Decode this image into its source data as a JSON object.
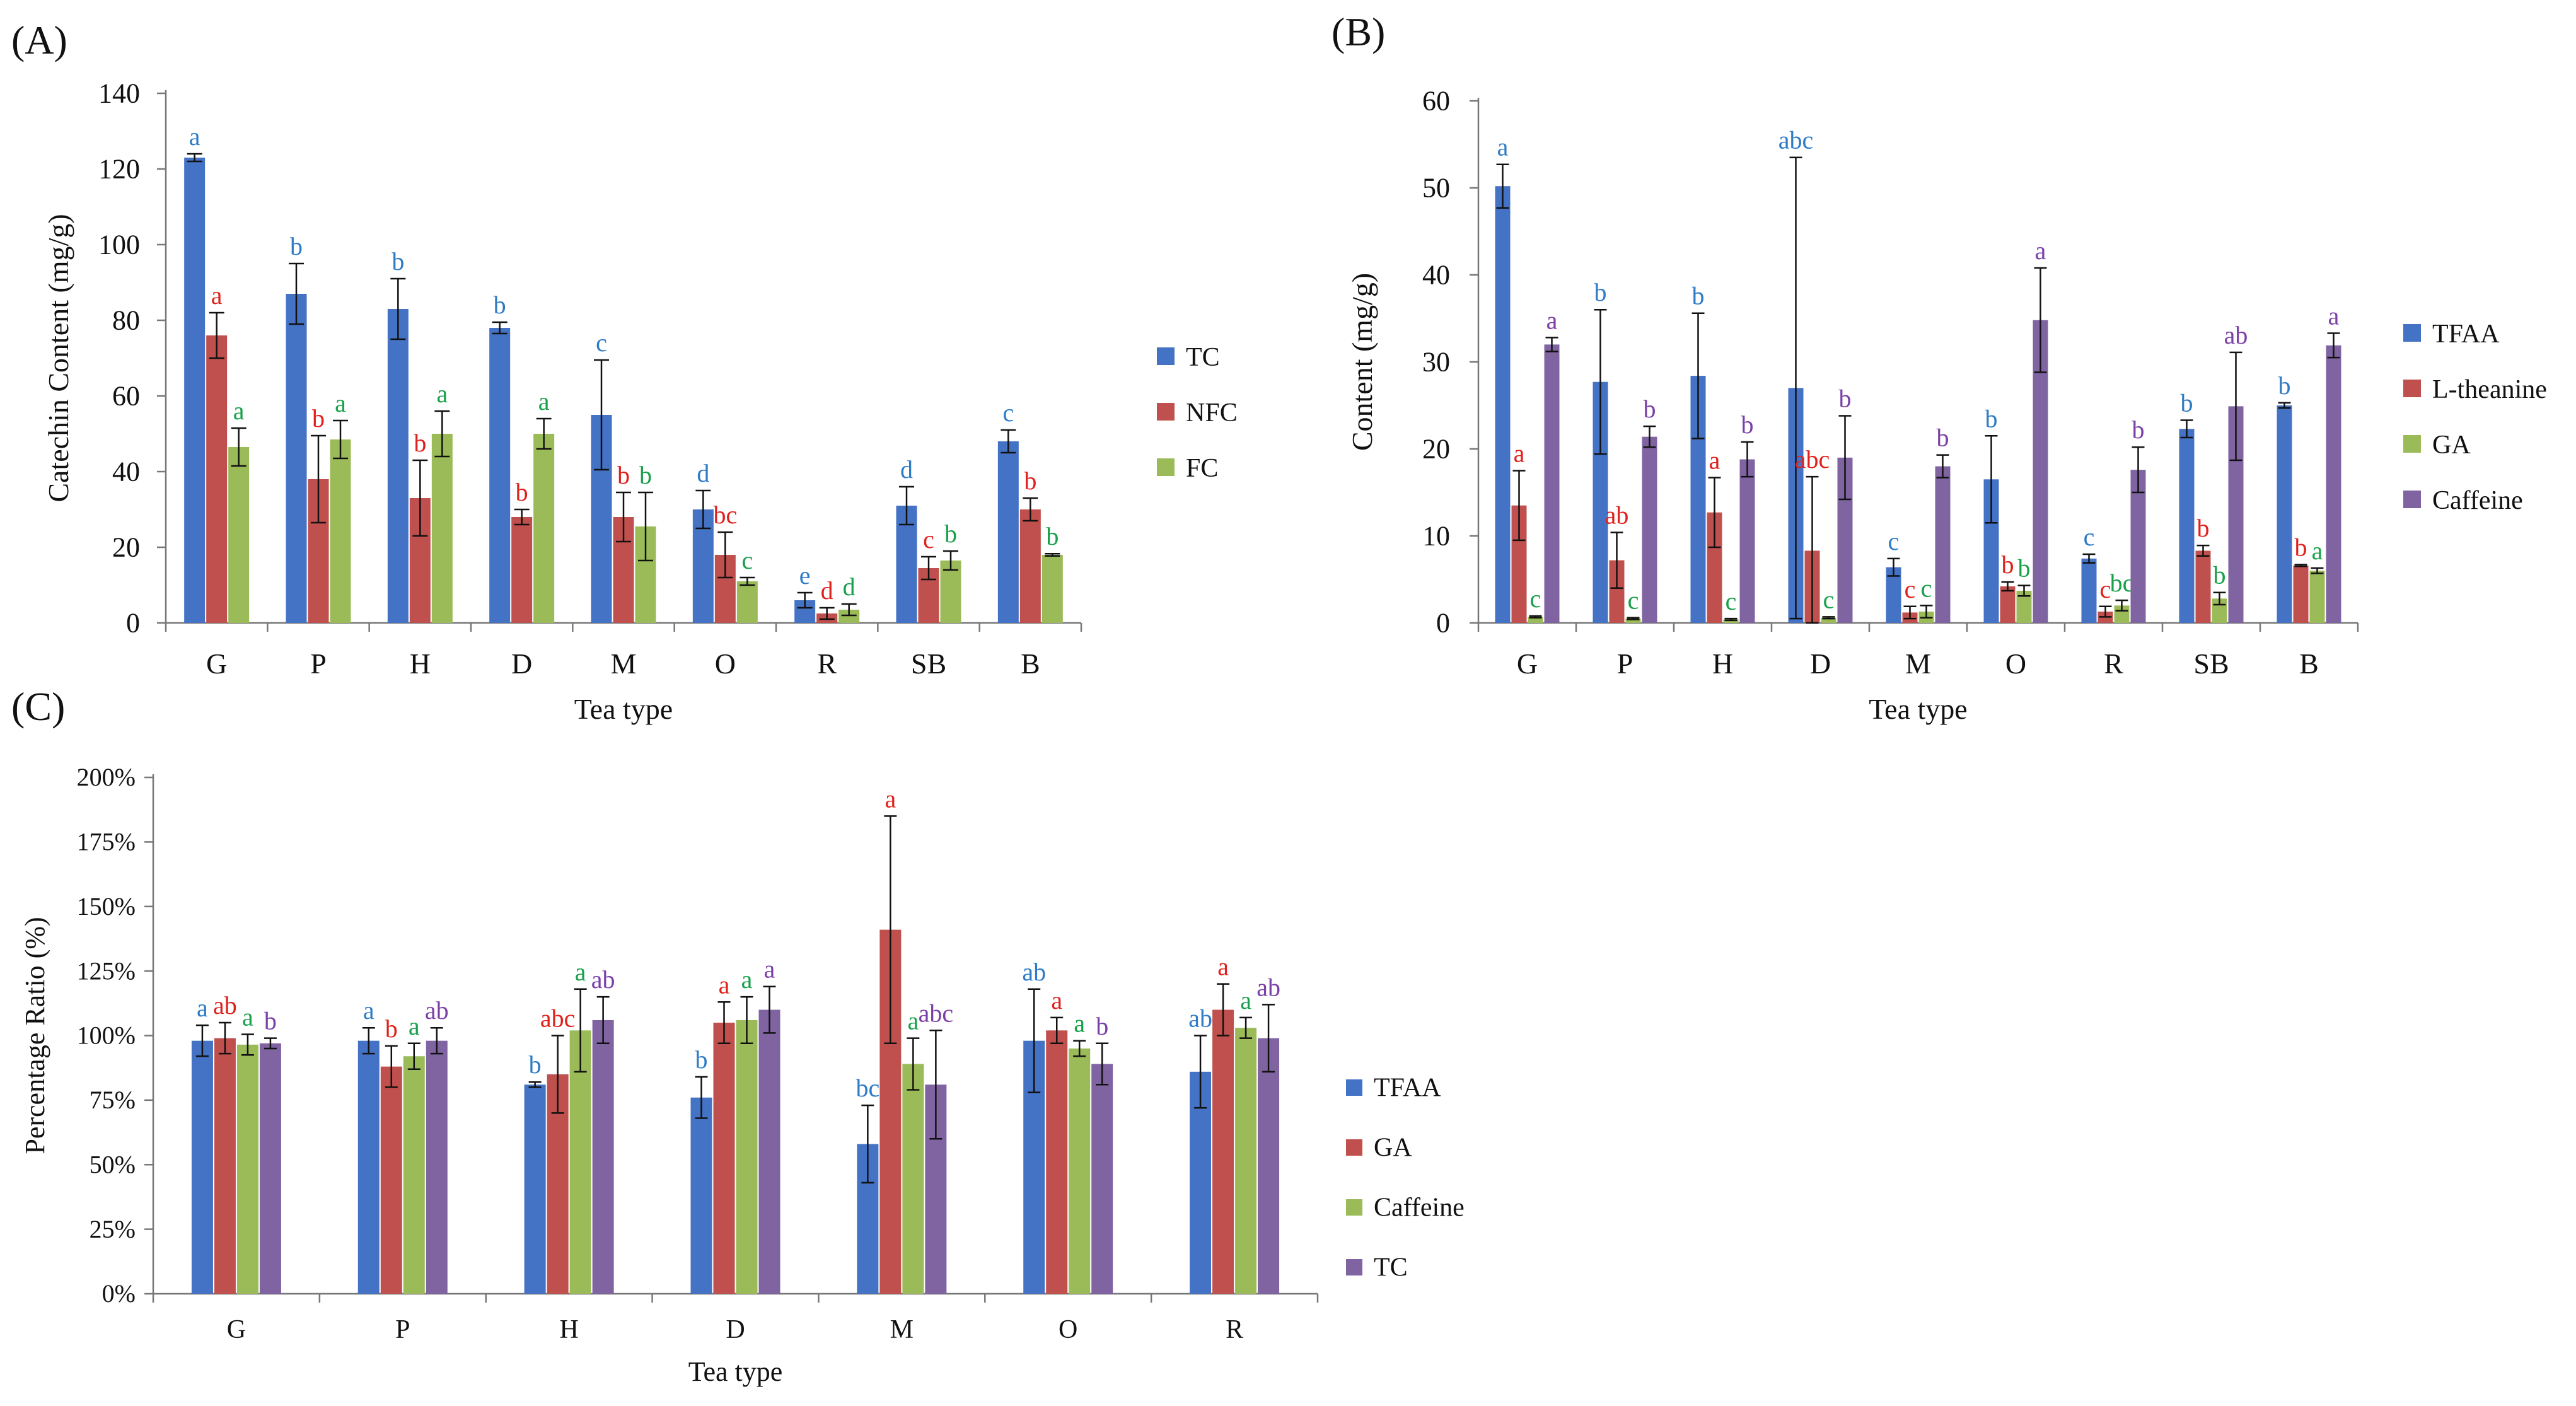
{
  "chart_data": [
    {
      "type": "bar",
      "panel": "(A)",
      "title": "",
      "xlabel": "Tea type",
      "ylabel": "Catechin Content (mg/g)",
      "ylim": [
        0,
        140
      ],
      "yticks": [
        0,
        20,
        40,
        60,
        80,
        100,
        120,
        140
      ],
      "ytick_labels": [
        "0",
        "20",
        "40",
        "60",
        "80",
        "100",
        "120",
        "140"
      ],
      "categories": [
        "G",
        "P",
        "H",
        "D",
        "M",
        "O",
        "R",
        "SB",
        "B"
      ],
      "legend_position": "right",
      "series": [
        {
          "name": "TC",
          "color": "#4472C4",
          "letter_color": "#2E7BC6",
          "values": [
            123,
            87,
            83,
            78,
            55,
            30,
            6,
            31,
            48
          ],
          "errors": [
            1,
            8,
            8,
            1.5,
            14.5,
            5,
            2,
            5,
            3
          ],
          "letters": [
            "a",
            "b",
            "b",
            "b",
            "c",
            "d",
            "e",
            "d",
            "c"
          ]
        },
        {
          "name": "NFC",
          "color": "#C0504D",
          "letter_color": "#E0201B",
          "values": [
            76,
            38,
            33,
            28,
            28,
            18,
            2.5,
            14.5,
            30
          ],
          "errors": [
            6,
            11.5,
            10,
            2,
            6.5,
            6,
            1.5,
            3,
            3
          ],
          "letters": [
            "a",
            "b",
            "b",
            "b",
            "b",
            "bc",
            "d",
            "c",
            "b"
          ]
        },
        {
          "name": "FC",
          "color": "#9BBB59",
          "letter_color": "#18A04A",
          "values": [
            46.5,
            48.5,
            50,
            50,
            25.5,
            11,
            3.5,
            16.5,
            18
          ],
          "errors": [
            5,
            5,
            6,
            4,
            9,
            1,
            1.5,
            2.5,
            0.3
          ],
          "letters": [
            "a",
            "a",
            "a",
            "a",
            "b",
            "c",
            "d",
            "b",
            "b"
          ]
        }
      ]
    },
    {
      "type": "bar",
      "panel": "(B)",
      "title": "",
      "xlabel": "Tea type",
      "ylabel": "Content (mg/g)",
      "ylim": [
        0,
        60
      ],
      "yticks": [
        0,
        10,
        20,
        30,
        40,
        50,
        60
      ],
      "ytick_labels": [
        "0",
        "10",
        "20",
        "30",
        "40",
        "50",
        "60"
      ],
      "categories": [
        "G",
        "P",
        "H",
        "D",
        "M",
        "O",
        "R",
        "SB",
        "B"
      ],
      "legend_position": "right",
      "series": [
        {
          "name": "TFAA",
          "color": "#4472C4",
          "letter_color": "#2E7BC6",
          "values": [
            50.2,
            27.7,
            28.4,
            27,
            6.4,
            16.5,
            7.4,
            22.3,
            25
          ],
          "errors": [
            2.5,
            8.3,
            7.2,
            26.5,
            1,
            5,
            0.5,
            1,
            0.3
          ],
          "letters": [
            "a",
            "b",
            "b",
            "abc",
            "c",
            "b",
            "c",
            "b",
            "b"
          ]
        },
        {
          "name": "L-theanine",
          "color": "#C0504D",
          "letter_color": "#E0201B",
          "values": [
            13.5,
            7.2,
            12.7,
            8.3,
            1.2,
            4.2,
            1.3,
            8.3,
            6.6
          ],
          "errors": [
            4,
            3.2,
            4,
            8.5,
            0.7,
            0.5,
            0.6,
            0.6,
            0.1
          ],
          "letters": [
            "a",
            "ab",
            "a",
            "abc",
            "c",
            "b",
            "c",
            "b",
            "b"
          ]
        },
        {
          "name": "GA",
          "color": "#9BBB59",
          "letter_color": "#18A04A",
          "values": [
            0.7,
            0.5,
            0.4,
            0.6,
            1.3,
            3.7,
            2,
            2.8,
            6
          ],
          "errors": [
            0.1,
            0.1,
            0.1,
            0.1,
            0.7,
            0.6,
            0.6,
            0.7,
            0.3
          ],
          "letters": [
            "c",
            "c",
            "c",
            "c",
            "c",
            "b",
            "bc",
            "b",
            "a"
          ]
        },
        {
          "name": "Caffeine",
          "color": "#8064A2",
          "letter_color": "#7B3FA8",
          "values": [
            32,
            21.4,
            18.8,
            19,
            18,
            34.8,
            17.6,
            24.9,
            31.9
          ],
          "errors": [
            0.8,
            1.2,
            2,
            4.8,
            1.3,
            6,
            2.6,
            6.2,
            1.4
          ],
          "letters": [
            "a",
            "b",
            "b",
            "b",
            "b",
            "a",
            "b",
            "ab",
            "a"
          ]
        }
      ]
    },
    {
      "type": "bar",
      "panel": "(C)",
      "title": "",
      "xlabel": "Tea type",
      "ylabel": "Percentage Ratio (%)",
      "ylim": [
        0,
        200
      ],
      "yticks": [
        0,
        25,
        50,
        75,
        100,
        125,
        150,
        175,
        200
      ],
      "ytick_labels": [
        "0%",
        "25%",
        "50%",
        "75%",
        "100%",
        "125%",
        "150%",
        "175%",
        "200%"
      ],
      "categories": [
        "G",
        "P",
        "H",
        "D",
        "M",
        "O",
        "R"
      ],
      "legend_position": "right",
      "series": [
        {
          "name": "TFAA",
          "color": "#4472C4",
          "letter_color": "#2E7BC6",
          "values": [
            98,
            98,
            81,
            76,
            58,
            98,
            86
          ],
          "errors": [
            6,
            5,
            1,
            8,
            15,
            20,
            14
          ],
          "letters": [
            "a",
            "a",
            "b",
            "b",
            "bc",
            "ab",
            "ab"
          ]
        },
        {
          "name": "GA",
          "color": "#C0504D",
          "letter_color": "#E0201B",
          "values": [
            99,
            88,
            85,
            105,
            141,
            102,
            110
          ],
          "errors": [
            6,
            8,
            15,
            8,
            44,
            5,
            10
          ],
          "letters": [
            "ab",
            "b",
            "abc",
            "a",
            "a",
            "a",
            "a"
          ]
        },
        {
          "name": "Caffeine",
          "color": "#9BBB59",
          "letter_color": "#18A04A",
          "values": [
            96.5,
            92,
            102,
            106,
            89,
            95,
            103
          ],
          "errors": [
            4,
            5,
            16,
            9,
            10,
            3,
            4
          ],
          "letters": [
            "a",
            "a",
            "a",
            "a",
            "a",
            "a",
            "a"
          ]
        },
        {
          "name": "TC",
          "color": "#8064A2",
          "letter_color": "#7B3FA8",
          "values": [
            97,
            98,
            106,
            110,
            81,
            89,
            99
          ],
          "errors": [
            2,
            5,
            9,
            9,
            21,
            8,
            13
          ],
          "letters": [
            "b",
            "ab",
            "ab",
            "a",
            "abc",
            "b",
            "ab"
          ]
        }
      ]
    }
  ]
}
